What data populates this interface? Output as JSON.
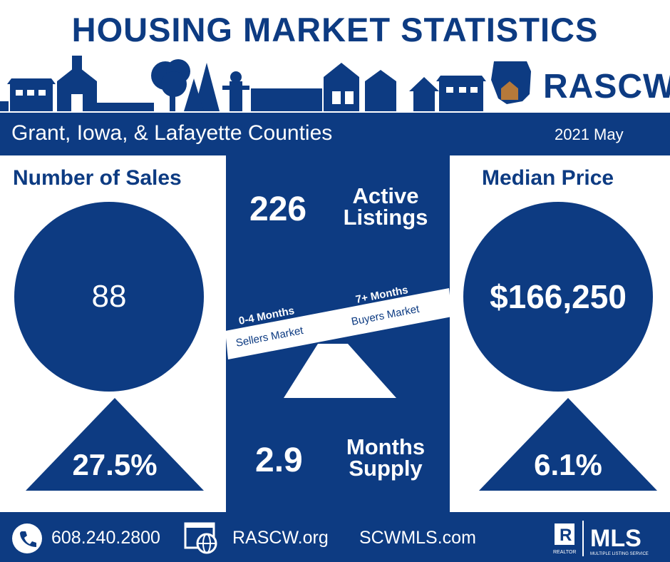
{
  "title": "HOUSING MARKET STATISTICS",
  "brand": "RASCW",
  "region": "Grant, Iowa, & Lafayette Counties",
  "period": "2021 May",
  "sales": {
    "heading": "Number of Sales",
    "value": "88",
    "change": "27.5%"
  },
  "median": {
    "heading": "Median Price",
    "value": "$166,250",
    "change": "6.1%"
  },
  "active": {
    "value": "226",
    "label_line1": "Active",
    "label_line2": "Listings"
  },
  "supply": {
    "value": "2.9",
    "label_line1": "Months",
    "label_line2": "Supply"
  },
  "scale": {
    "left_top": "0-4 Months",
    "left_bottom": "Sellers Market",
    "right_top": "7+ Months",
    "right_bottom": "Buyers Market"
  },
  "footer": {
    "phone": "608.240.2800",
    "site1": "RASCW.org",
    "site2": "SCWMLS.com",
    "realtor_mark": "REALTOR",
    "mls": "MLS",
    "mls_sub": "MULTIPLE LISTING SERVICE"
  },
  "colors": {
    "navy": "#0d3b82",
    "white": "#ffffff",
    "accent": "#b5793a"
  }
}
